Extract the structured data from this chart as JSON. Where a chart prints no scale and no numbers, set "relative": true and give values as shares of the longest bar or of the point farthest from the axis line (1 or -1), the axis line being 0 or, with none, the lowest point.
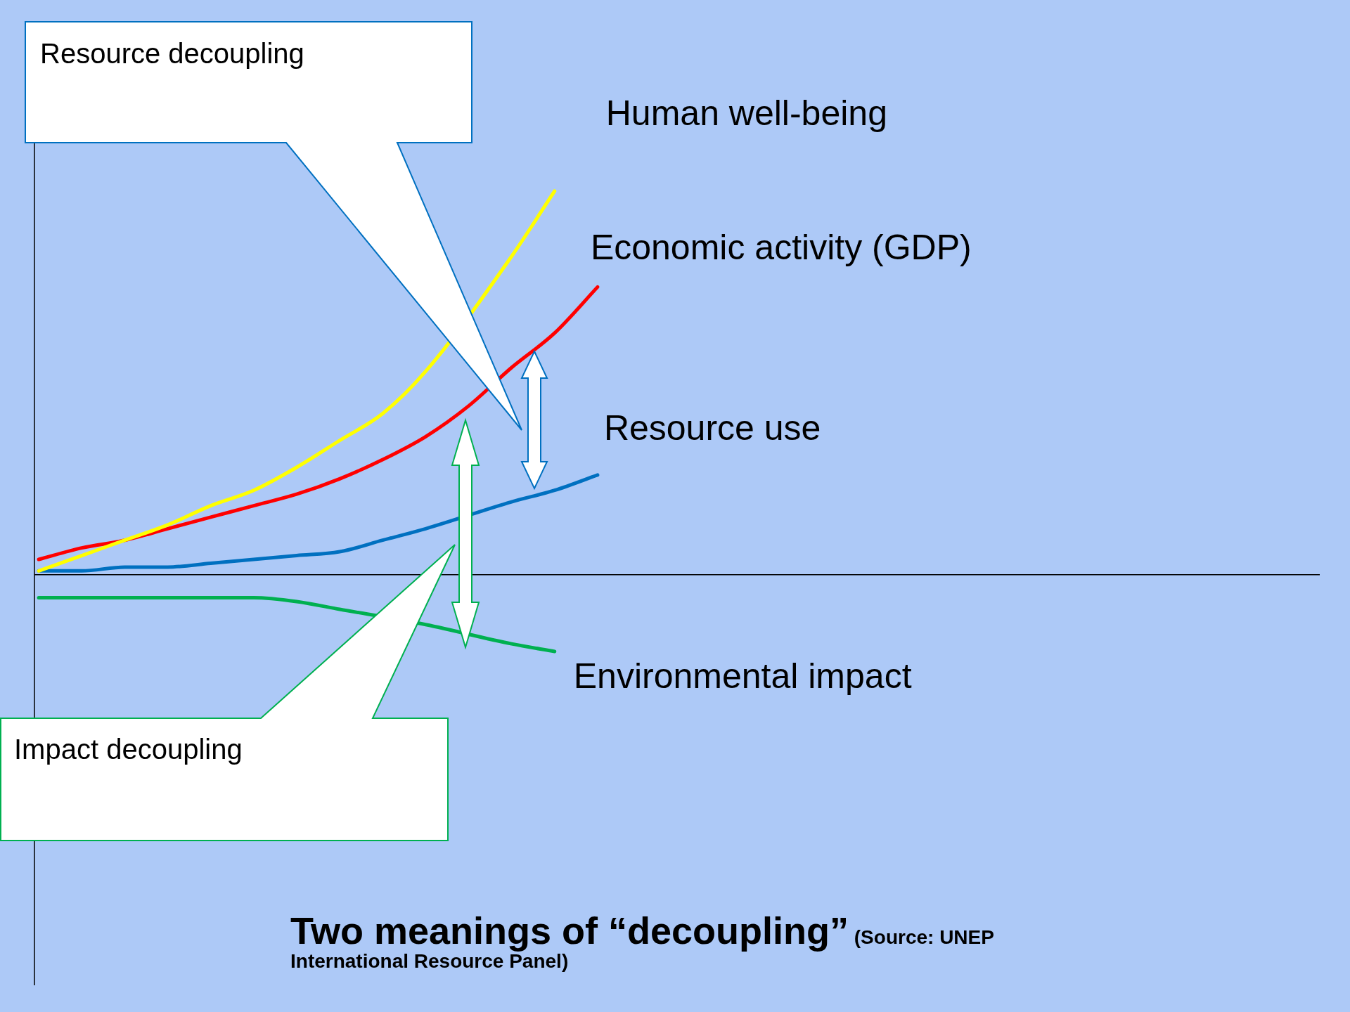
{
  "chart_data": {
    "type": "line",
    "title": "Two meanings of “decoupling”",
    "relative": true,
    "legend": false,
    "marker": "none",
    "categories": [
      null,
      null,
      null,
      null,
      null,
      null,
      null,
      null,
      null,
      null,
      null,
      null,
      null,
      null
    ],
    "series": [
      {
        "name": "Human well-being",
        "color": "#ffff00",
        "values": [
          0.01,
          0.05,
          0.09,
          0.13,
          0.18,
          0.22,
          0.28,
          0.35,
          0.42,
          0.53,
          null,
          0.83,
          1,
          null
        ]
      },
      {
        "name": "Economic activity (GDP)",
        "color": "#ff0000",
        "values": [
          0.04,
          0.07,
          0.09,
          0.12,
          0.15,
          0.18,
          0.21,
          0.25,
          0.3,
          0.36,
          0.44,
          0.54,
          0.63,
          0.75
        ]
      },
      {
        "name": "Resource use",
        "color": "#0070c0",
        "values": [
          0.01,
          0.01,
          0.02,
          0.02,
          0.03,
          0.04,
          0.05,
          0.06,
          0.09,
          0.12,
          null,
          0.19,
          0.22,
          0.26
        ]
      },
      {
        "name": "Environmental impact",
        "color": "#00b050",
        "values": [
          -0.06,
          -0.06,
          -0.06,
          -0.06,
          -0.06,
          -0.06,
          -0.07,
          -0.09,
          null,
          -0.13,
          null,
          -0.18,
          -0.2,
          null
        ]
      }
    ],
    "annotations": [
      "Resource decoupling",
      "Impact decoupling",
      "(Source:  UNEP International Resource Panel)"
    ]
  }
}
